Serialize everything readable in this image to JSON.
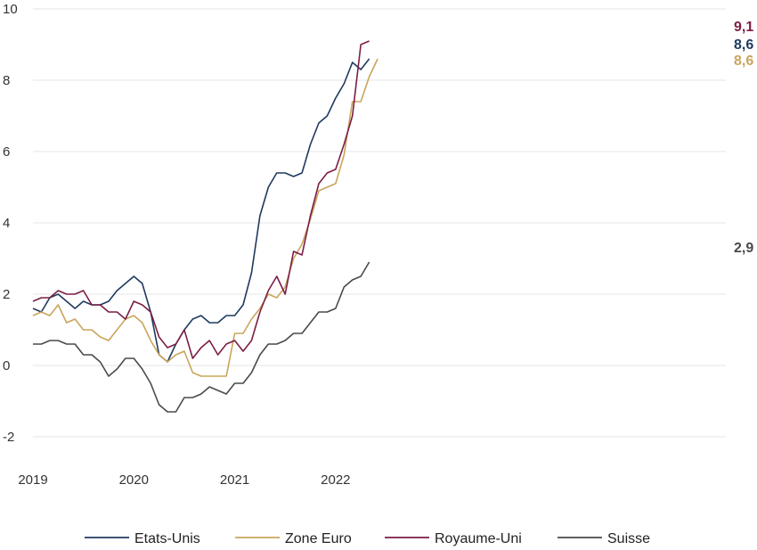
{
  "chart_data": {
    "type": "line",
    "title": "",
    "xlabel": "",
    "ylabel": "",
    "ylim": [
      -2.8,
      10
    ],
    "grid": true,
    "legend_position": "bottom",
    "y_ticks": [
      "10",
      "8",
      "6",
      "4",
      "2",
      "0",
      "-2"
    ],
    "x_ticks": [
      "2019",
      "2020",
      "2021",
      "2022"
    ],
    "x_start": "2019-01",
    "series": [
      {
        "name": "Etats-Unis",
        "color": "#1f3a5f",
        "end_label": "8,6",
        "values": [
          1.6,
          1.5,
          1.9,
          2.0,
          1.8,
          1.6,
          1.8,
          1.7,
          1.7,
          1.8,
          2.1,
          2.3,
          2.5,
          2.3,
          1.5,
          0.3,
          0.1,
          0.6,
          1.0,
          1.3,
          1.4,
          1.2,
          1.2,
          1.4,
          1.4,
          1.7,
          2.6,
          4.2,
          5.0,
          5.4,
          5.4,
          5.3,
          5.4,
          6.2,
          6.8,
          7.0,
          7.5,
          7.9,
          8.5,
          8.3,
          8.6
        ]
      },
      {
        "name": "Zone Euro",
        "color": "#c9a55c",
        "end_label": "8,6",
        "values": [
          1.4,
          1.5,
          1.4,
          1.7,
          1.2,
          1.3,
          1.0,
          1.0,
          0.8,
          0.7,
          1.0,
          1.3,
          1.4,
          1.2,
          0.7,
          0.3,
          0.1,
          0.3,
          0.4,
          -0.2,
          -0.3,
          -0.3,
          -0.3,
          -0.3,
          0.9,
          0.9,
          1.3,
          1.6,
          2.0,
          1.9,
          2.2,
          3.0,
          3.4,
          4.1,
          4.9,
          5.0,
          5.1,
          5.9,
          7.4,
          7.4,
          8.1,
          8.6
        ]
      },
      {
        "name": "Royaume-Uni",
        "color": "#7b1e45",
        "end_label": "9,1",
        "values": [
          1.8,
          1.9,
          1.9,
          2.1,
          2.0,
          2.0,
          2.1,
          1.7,
          1.7,
          1.5,
          1.5,
          1.3,
          1.8,
          1.7,
          1.5,
          0.8,
          0.5,
          0.6,
          1.0,
          0.2,
          0.5,
          0.7,
          0.3,
          0.6,
          0.7,
          0.4,
          0.7,
          1.5,
          2.1,
          2.5,
          2.0,
          3.2,
          3.1,
          4.2,
          5.1,
          5.4,
          5.5,
          6.2,
          7.0,
          9.0,
          9.1
        ]
      },
      {
        "name": "Suisse",
        "color": "#4a4a4a",
        "end_label": "2,9",
        "values": [
          0.6,
          0.6,
          0.7,
          0.7,
          0.6,
          0.6,
          0.3,
          0.3,
          0.1,
          -0.3,
          -0.1,
          0.2,
          0.2,
          -0.1,
          -0.5,
          -1.1,
          -1.3,
          -1.3,
          -0.9,
          -0.9,
          -0.8,
          -0.6,
          -0.7,
          -0.8,
          -0.5,
          -0.5,
          -0.2,
          0.3,
          0.6,
          0.6,
          0.7,
          0.9,
          0.9,
          1.2,
          1.5,
          1.5,
          1.6,
          2.2,
          2.4,
          2.5,
          2.9
        ]
      }
    ]
  }
}
